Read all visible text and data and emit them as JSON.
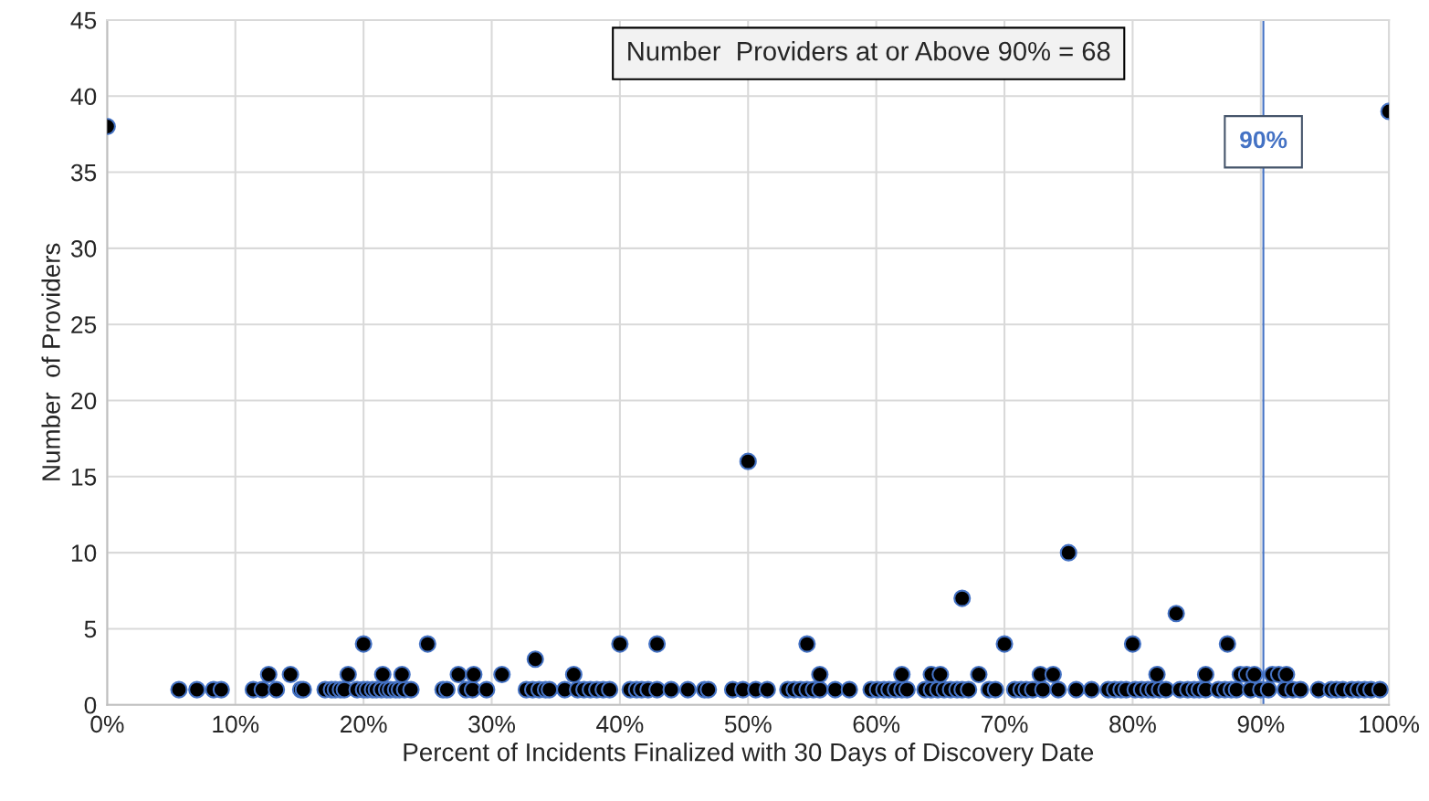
{
  "chart_data": {
    "type": "scatter",
    "xlabel": "Percent of Incidents Finalized with 30 Days of Discovery Date",
    "ylabel": "Number  of Providers",
    "annotations": [
      "Number  Providers at or Above 90% = 68"
    ],
    "x": [
      0,
      5.6,
      7.0,
      8.3,
      8.9,
      11.4,
      12.1,
      13.2,
      15.1,
      15.3,
      17.0,
      17.5,
      17.8,
      18.2,
      18.5,
      19.5,
      20.0,
      20.3,
      20.7,
      21.0,
      21.4,
      21.8,
      22.1,
      22.5,
      22.8,
      23.2,
      23.7,
      12.6,
      14.3,
      18.8,
      21.5,
      23.0,
      20.0,
      25.0,
      26.2,
      26.5,
      28.0,
      28.5,
      29.6,
      32.7,
      33.2,
      33.7,
      34.2,
      34.5,
      35.7,
      36.7,
      37.2,
      37.7,
      38.2,
      38.7,
      39.2,
      40.8,
      41.3,
      41.7,
      42.2,
      42.9,
      44.0,
      45.3,
      46.6,
      46.9,
      48.8,
      49.6,
      27.4,
      28.6,
      30.8,
      36.4,
      33.4,
      40.0,
      42.9,
      50.6,
      51.5,
      53.1,
      53.6,
      54.1,
      54.6,
      55.1,
      55.6,
      56.8,
      57.9,
      59.6,
      60.1,
      60.6,
      61.0,
      61.5,
      62.0,
      62.4,
      63.8,
      64.3,
      64.8,
      65.3,
      65.8,
      66.3,
      66.7,
      67.2,
      68.8,
      69.3,
      70.8,
      71.3,
      71.7,
      72.2,
      73.0,
      74.2,
      75.6,
      76.8,
      55.6,
      62.0,
      64.3,
      65.0,
      68.0,
      72.8,
      73.8,
      54.6,
      70.0,
      66.7,
      75.0,
      50.0,
      78.1,
      78.6,
      79.1,
      79.5,
      80.2,
      80.7,
      81.2,
      81.6,
      82.1,
      82.6,
      83.7,
      84.3,
      84.8,
      85.2,
      85.7,
      86.7,
      87.2,
      87.7,
      88.1,
      89.2,
      90.0,
      90.6,
      91.9,
      92.5,
      93.1,
      94.5,
      95.5,
      95.9,
      96.4,
      97.1,
      97.6,
      98.1,
      98.6,
      99.3,
      81.9,
      85.7,
      88.4,
      88.9,
      89.5,
      90.9,
      91.4,
      92.0,
      80.0,
      87.4,
      83.4,
      100
    ],
    "series": [
      {
        "color": "#000000",
        "values": [
          38,
          1,
          1,
          1,
          1,
          1,
          1,
          1,
          1,
          1,
          1,
          1,
          1,
          1,
          1,
          1,
          1,
          1,
          1,
          1,
          1,
          1,
          1,
          1,
          1,
          1,
          1,
          2,
          2,
          2,
          2,
          2,
          4,
          4,
          1,
          1,
          1,
          1,
          1,
          1,
          1,
          1,
          1,
          1,
          1,
          1,
          1,
          1,
          1,
          1,
          1,
          1,
          1,
          1,
          1,
          1,
          1,
          1,
          1,
          1,
          1,
          1,
          2,
          2,
          2,
          2,
          3,
          4,
          4,
          1,
          1,
          1,
          1,
          1,
          1,
          1,
          1,
          1,
          1,
          1,
          1,
          1,
          1,
          1,
          1,
          1,
          1,
          1,
          1,
          1,
          1,
          1,
          1,
          1,
          1,
          1,
          1,
          1,
          1,
          1,
          1,
          1,
          1,
          1,
          2,
          2,
          2,
          2,
          2,
          2,
          2,
          4,
          4,
          7,
          10,
          16,
          1,
          1,
          1,
          1,
          1,
          1,
          1,
          1,
          1,
          1,
          1,
          1,
          1,
          1,
          1,
          1,
          1,
          1,
          1,
          1,
          1,
          1,
          1,
          1,
          1,
          1,
          1,
          1,
          1,
          1,
          1,
          1,
          1,
          1,
          2,
          2,
          2,
          2,
          2,
          2,
          2,
          2,
          4,
          4,
          6,
          39
        ]
      }
    ],
    "xlim": [
      0,
      100
    ],
    "ylim": [
      0,
      45
    ],
    "xticks": [
      {
        "value": 0,
        "label": "0%"
      },
      {
        "value": 10,
        "label": "10%"
      },
      {
        "value": 20,
        "label": "20%"
      },
      {
        "value": 30,
        "label": "30%"
      },
      {
        "value": 40,
        "label": "40%"
      },
      {
        "value": 50,
        "label": "50%"
      },
      {
        "value": 60,
        "label": "60%"
      },
      {
        "value": 70,
        "label": "70%"
      },
      {
        "value": 80,
        "label": "80%"
      },
      {
        "value": 90,
        "label": "90%"
      },
      {
        "value": 100,
        "label": "100%"
      }
    ],
    "yticks": [
      0,
      5,
      10,
      15,
      20,
      25,
      30,
      35,
      40,
      45
    ],
    "ref_lines": [
      {
        "axis": "x",
        "value": 90.2,
        "label": "90%",
        "color": "#4472c4"
      }
    ],
    "grid": true,
    "marker": "circle"
  }
}
